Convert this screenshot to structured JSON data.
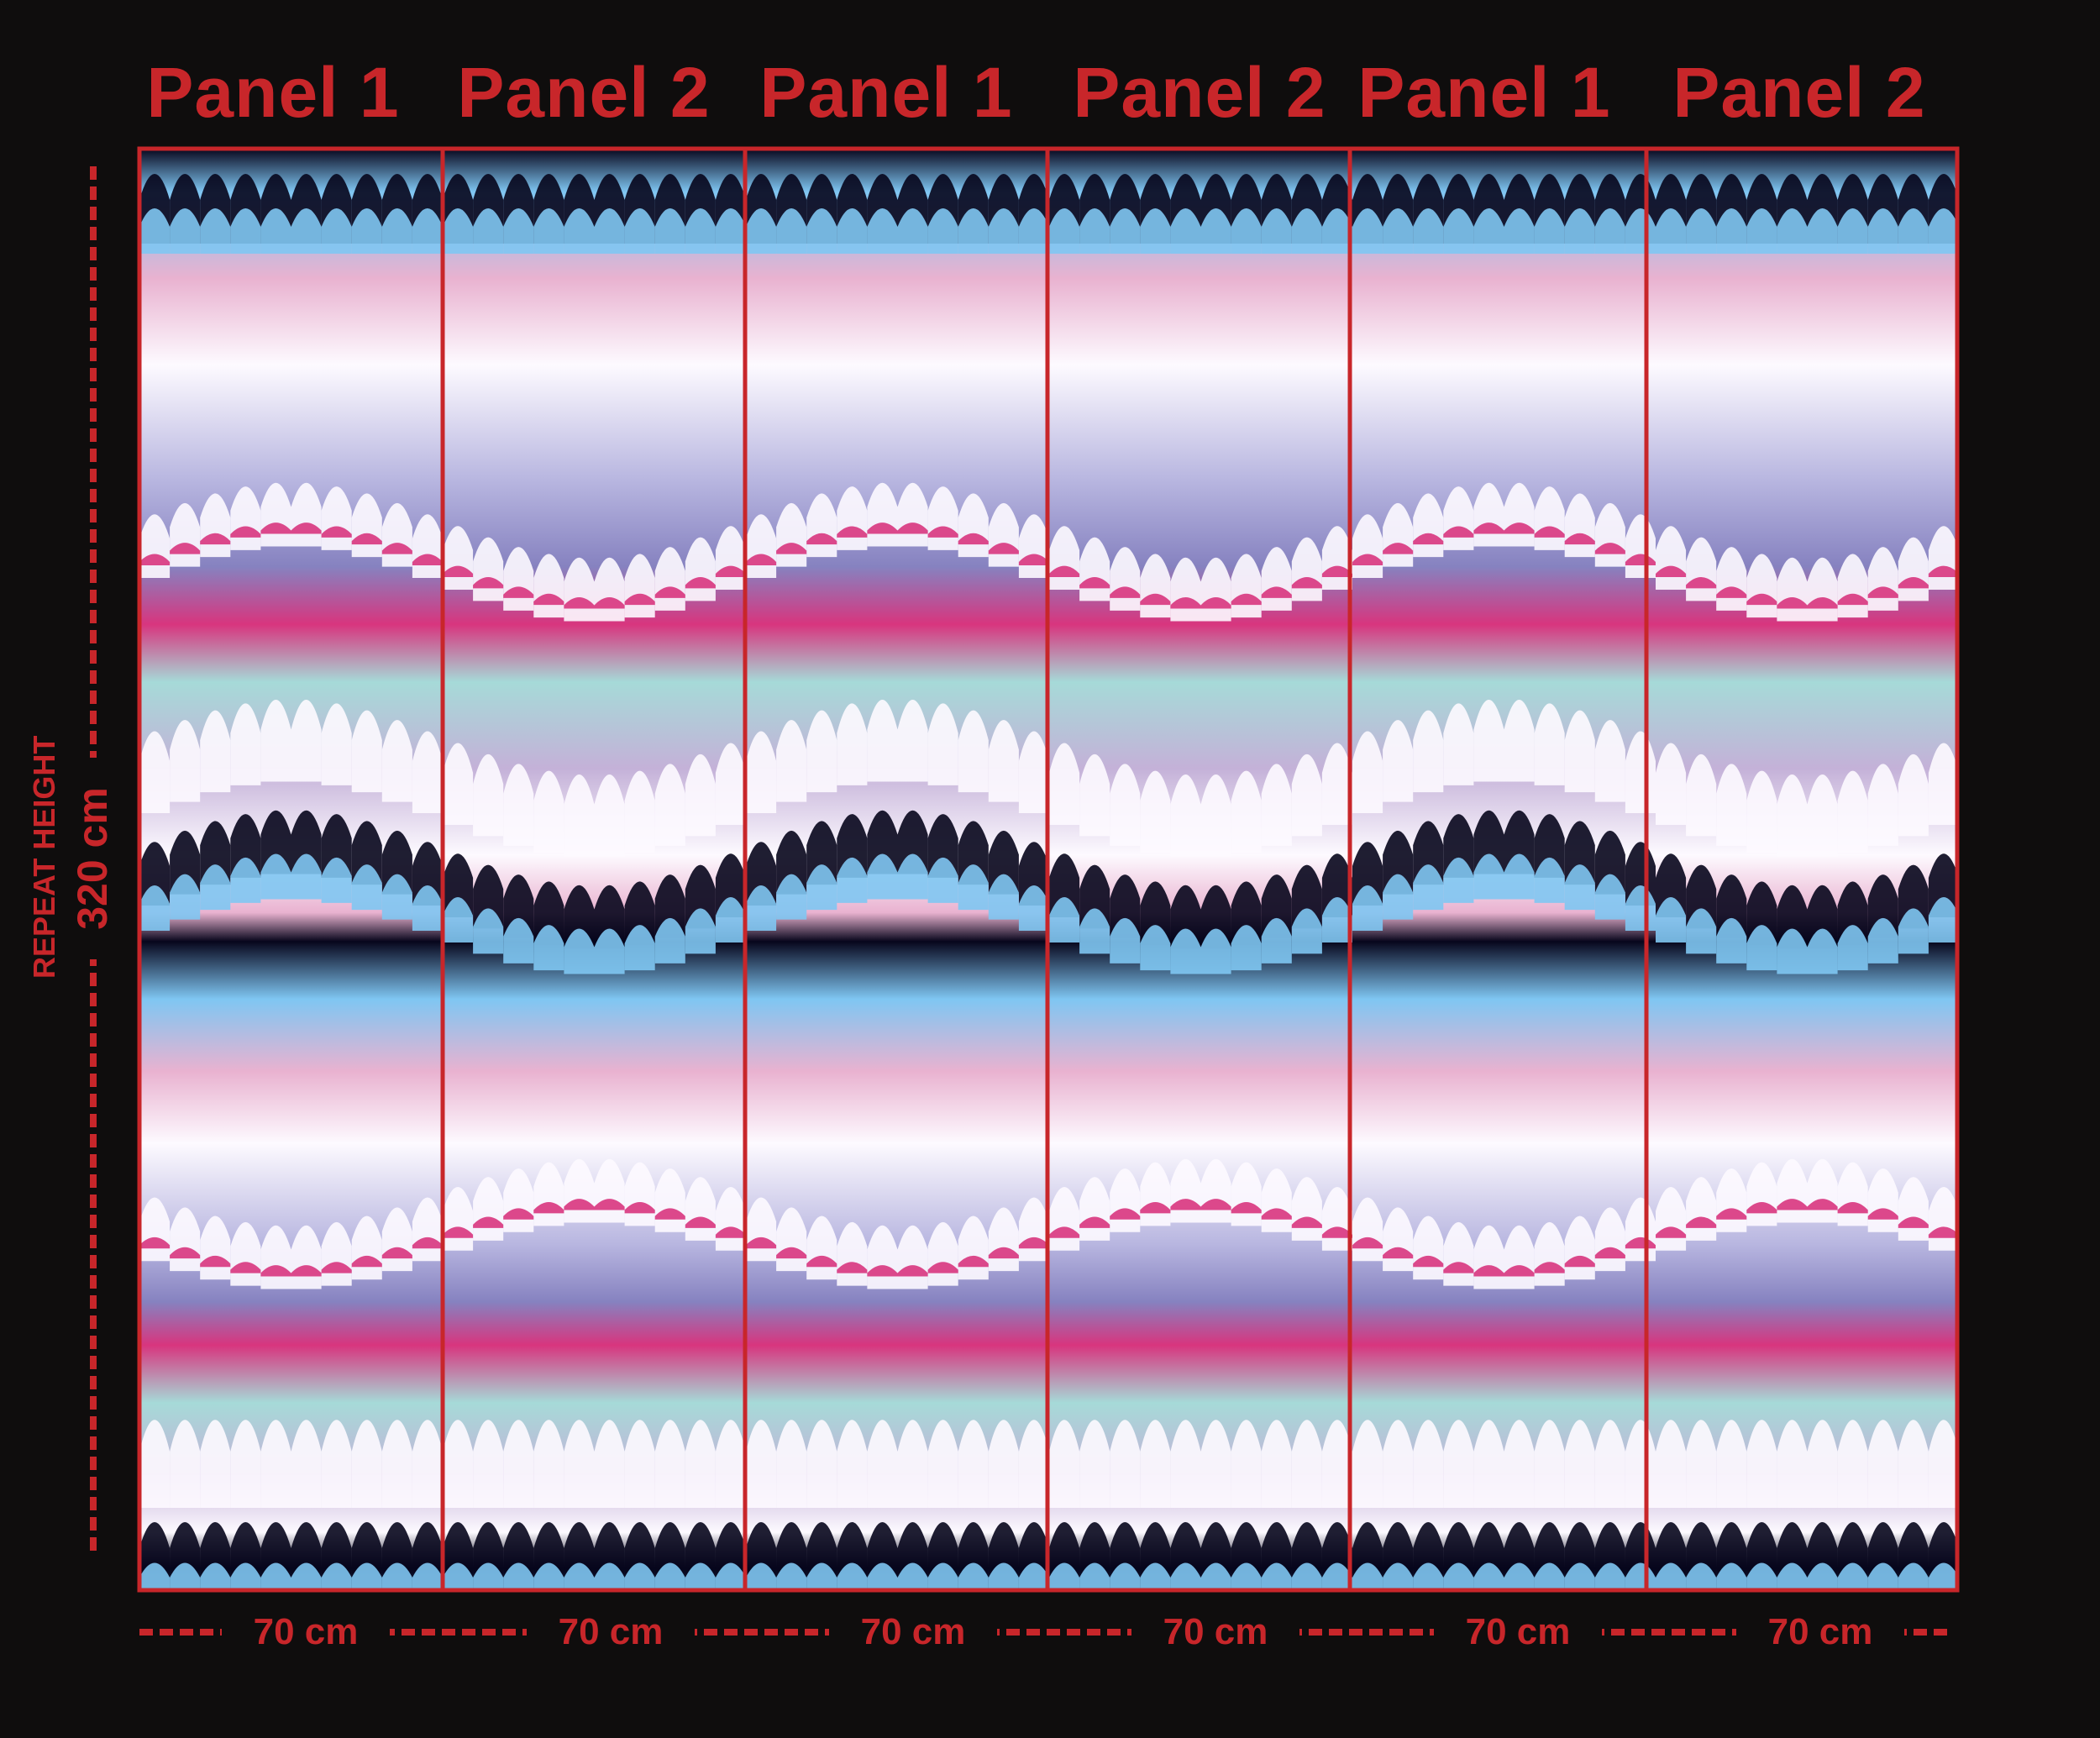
{
  "panels": [
    {
      "label": "Panel 1",
      "width_label": "70 cm",
      "variant": "a"
    },
    {
      "label": "Panel 2",
      "width_label": "70 cm",
      "variant": "b"
    },
    {
      "label": "Panel 1",
      "width_label": "70 cm",
      "variant": "a"
    },
    {
      "label": "Panel 2",
      "width_label": "70 cm",
      "variant": "b"
    },
    {
      "label": "Panel 1",
      "width_label": "70 cm",
      "variant": "a"
    },
    {
      "label": "Panel 2",
      "width_label": "70 cm",
      "variant": "b"
    }
  ],
  "repeat": {
    "caption": "REPEAT HEIGHT",
    "value": "320 cm"
  },
  "colors": {
    "background": "#0f0d0d",
    "annotation_red": "#c8262a",
    "navy": "#07061c",
    "sky_blue": "#7fc6f2",
    "pink": "#e9b2d0",
    "white": "#fdfaff",
    "periwinkle": "#8682c0",
    "magenta": "#d8357e",
    "mint": "#a6dad8",
    "lilac": "#c4b1d8"
  }
}
